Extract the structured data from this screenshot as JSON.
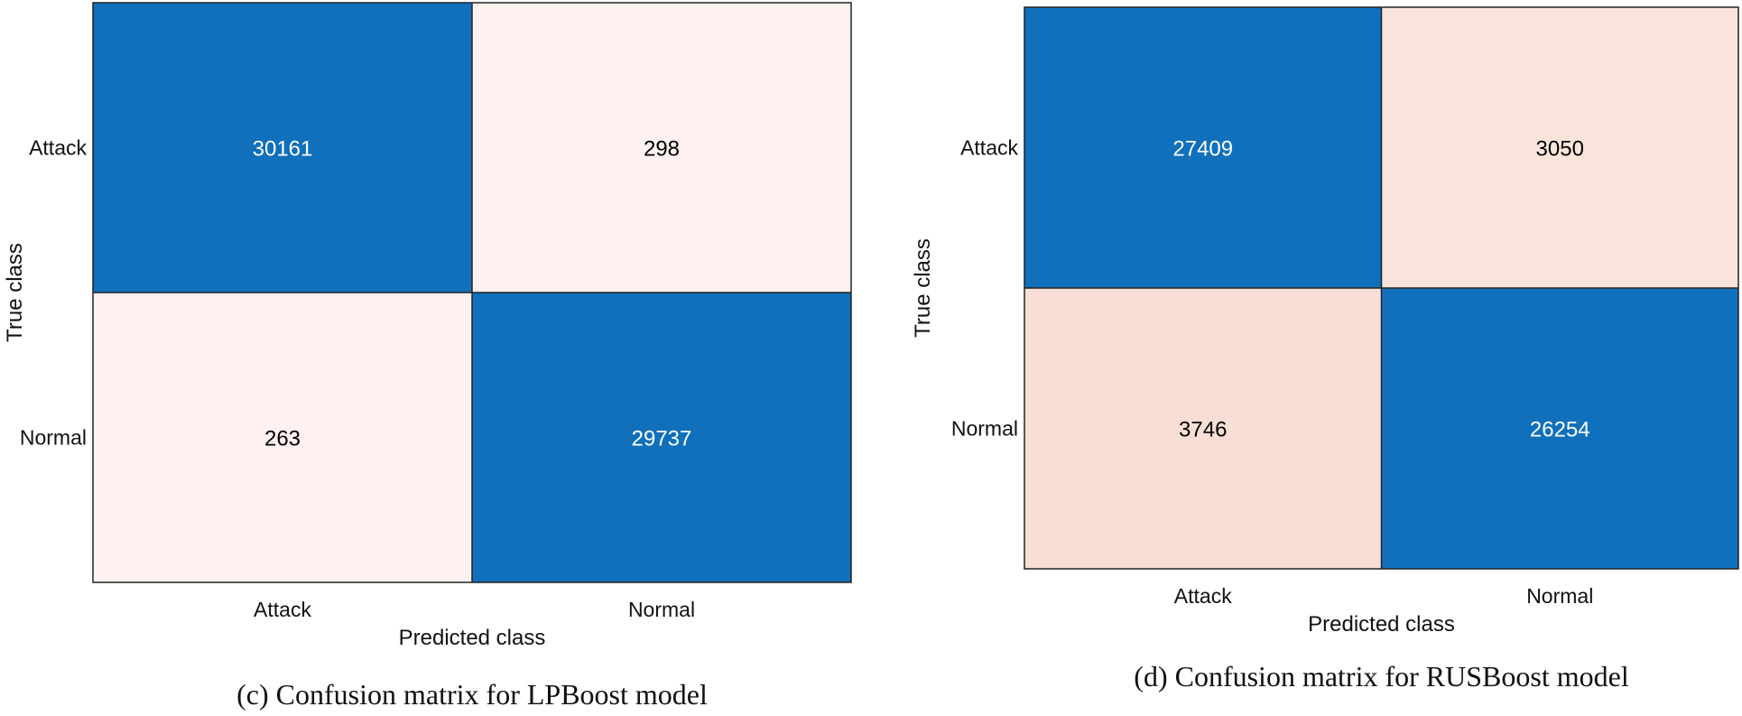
{
  "chart_data": [
    {
      "type": "heatmap",
      "caption": "(c) Confusion matrix for LPBoost model",
      "xlabel": "Predicted class",
      "ylabel": "True class",
      "x_categories": [
        "Attack",
        "Normal"
      ],
      "y_categories": [
        "Attack",
        "Normal"
      ],
      "values": [
        [
          30161,
          298
        ],
        [
          263,
          29737
        ]
      ],
      "colors": {
        "diagonal": "#1170BB",
        "cell_0_1": "#FEF1F0",
        "cell_1_0": "#FEF1F0",
        "diagonal_text": "#ffffff",
        "offdiagonal_text": "#000000"
      }
    },
    {
      "type": "heatmap",
      "caption": "(d) Confusion matrix for RUSBoost model",
      "xlabel": "Predicted class",
      "ylabel": "True class",
      "x_categories": [
        "Attack",
        "Normal"
      ],
      "y_categories": [
        "Attack",
        "Normal"
      ],
      "values": [
        [
          27409,
          3050
        ],
        [
          3746,
          26254
        ]
      ],
      "colors": {
        "diagonal": "#1170BB",
        "cell_0_1": "#F8E4DA",
        "cell_1_0": "#F8DED4",
        "diagonal_text": "#ffffff",
        "offdiagonal_text": "#000000"
      }
    }
  ]
}
